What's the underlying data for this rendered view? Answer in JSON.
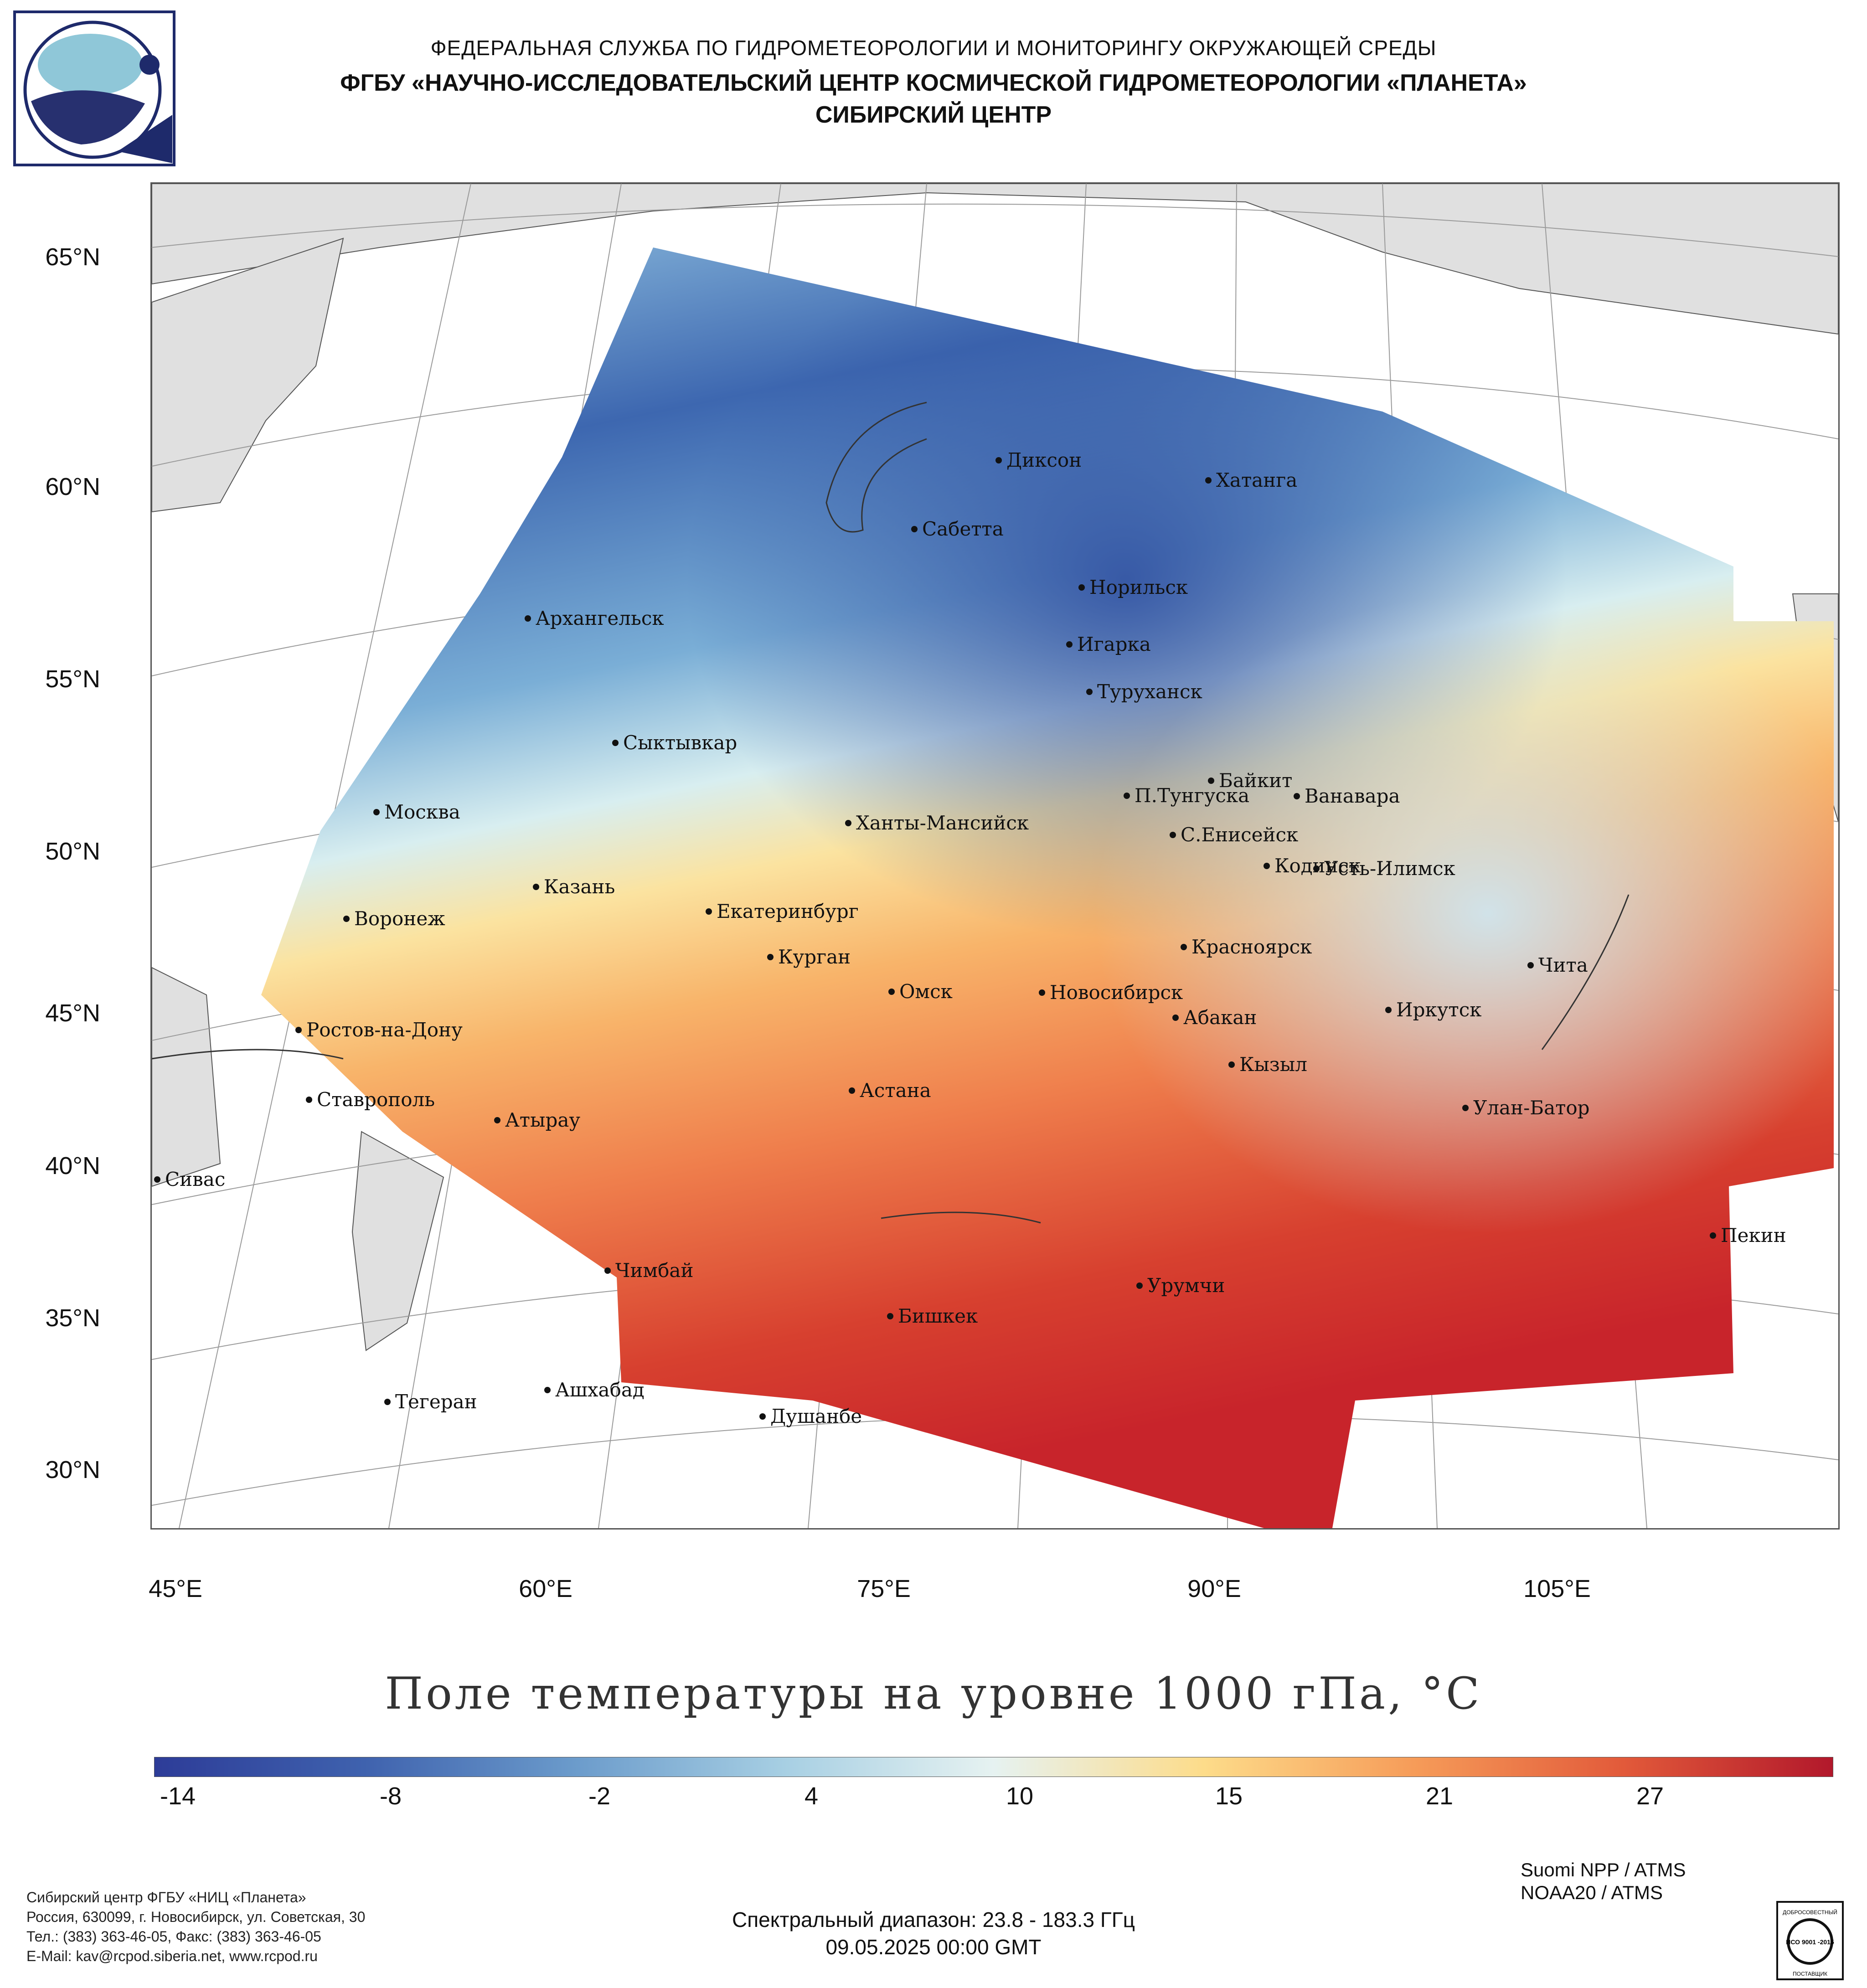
{
  "header": {
    "line1": "ФЕДЕРАЛЬНАЯ СЛУЖБА ПО ГИДРОМЕТЕОРОЛОГИИ И МОНИТОРИНГУ ОКРУЖАЮЩЕЙ СРЕДЫ",
    "line2": "ФГБУ «НАУЧНО-ИССЛЕДОВАТЕЛЬСКИЙ ЦЕНТР КОСМИЧЕСКОЙ ГИДРОМЕТЕОРОЛОГИИ «ПЛАНЕТА»",
    "line3": "СИБИРСКИЙ ЦЕНТР"
  },
  "map": {
    "latitude_labels": [
      "65°N",
      "60°N",
      "55°N",
      "50°N",
      "45°N",
      "40°N",
      "35°N",
      "30°N"
    ],
    "longitude_labels": [
      "45°E",
      "60°E",
      "75°E",
      "90°E",
      "105°E"
    ],
    "cities": [
      {
        "name": "Диксон"
      },
      {
        "name": "Хатанга"
      },
      {
        "name": "Сабетта"
      },
      {
        "name": "Норильск"
      },
      {
        "name": "Архангельск"
      },
      {
        "name": "Игарка"
      },
      {
        "name": "Туруханск"
      },
      {
        "name": "Сыктывкар"
      },
      {
        "name": "Байкит"
      },
      {
        "name": "П.Тунгуска"
      },
      {
        "name": "Ванавара"
      },
      {
        "name": "Москва"
      },
      {
        "name": "Ханты-Мансийск"
      },
      {
        "name": "С.Енисейск"
      },
      {
        "name": "Кодинск"
      },
      {
        "name": "Усть-Илимск"
      },
      {
        "name": "Казань"
      },
      {
        "name": "Екатеринбург"
      },
      {
        "name": "Воронеж"
      },
      {
        "name": "Красноярск"
      },
      {
        "name": "Курган"
      },
      {
        "name": "Чита"
      },
      {
        "name": "Омск"
      },
      {
        "name": "Новосибирск"
      },
      {
        "name": "Ростов-на-Дону"
      },
      {
        "name": "Иркутск"
      },
      {
        "name": "Абакан"
      },
      {
        "name": "Кызыл"
      },
      {
        "name": "Астана"
      },
      {
        "name": "Ставрополь"
      },
      {
        "name": "Улан-Батор"
      },
      {
        "name": "Атырау"
      },
      {
        "name": "Сивас"
      },
      {
        "name": "Пекин"
      },
      {
        "name": "Чимбай"
      },
      {
        "name": "Урумчи"
      },
      {
        "name": "Бишкек"
      },
      {
        "name": "Ашхабад"
      },
      {
        "name": "Тегеран"
      },
      {
        "name": "Душанбе"
      }
    ]
  },
  "product_title": "Поле температуры на уровне 1000 гПа, °С",
  "colorbar": {
    "ticks": [
      "-14",
      "-8",
      "-2",
      "4",
      "10",
      "15",
      "21",
      "27"
    ],
    "colors": [
      "#2d3c98",
      "#3f62ae",
      "#6b9bcb",
      "#a7cfe3",
      "#e6f2f1",
      "#fddc8a",
      "#f69c59",
      "#e25a3a",
      "#b2182b"
    ]
  },
  "satellites": [
    "Suomi NPP / ATMS",
    "NOAA20 / ATMS"
  ],
  "spectral_range": "Спектральный диапазон: 23.8 - 183.3 ГГц",
  "timestamp": "09.05.2025 00:00 GMT",
  "contact": [
    "Сибирский центр ФГБУ «НИЦ «Планета»",
    "Россия, 630099, г. Новосибирск, ул. Советская, 30",
    "Тел.: (383) 363-46-05, Факс: (383) 363-46-05",
    "E-Mail: kav@rcpod.siberia.net, www.rcpod.ru"
  ],
  "iso_badge": {
    "top": "ДОБРОСОВЕСТНЫЙ",
    "mid": "ИСО 9001 -2015",
    "bottom": "ПОСТАВЩИК"
  }
}
